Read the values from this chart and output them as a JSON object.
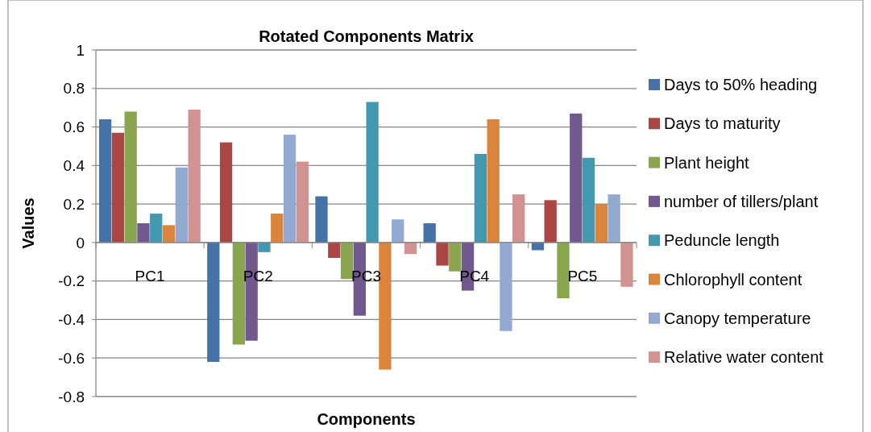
{
  "chart_data": {
    "type": "bar",
    "title": "Rotated Components Matrix",
    "xlabel": "Components",
    "ylabel": "Values",
    "categories": [
      "PC1",
      "PC2",
      "PC3",
      "PC4",
      "PC5"
    ],
    "series": [
      {
        "name": "Days to 50% heading",
        "color": "#4673a7",
        "values": [
          0.64,
          -0.62,
          0.24,
          0.1,
          -0.04
        ]
      },
      {
        "name": "Days to maturity",
        "color": "#aa4643",
        "values": [
          0.57,
          0.52,
          -0.08,
          -0.12,
          0.22
        ]
      },
      {
        "name": "Plant height",
        "color": "#89a54e",
        "values": [
          0.68,
          -0.53,
          -0.19,
          -0.15,
          -0.29
        ]
      },
      {
        "name": "number of tillers/plant",
        "color": "#71588f",
        "values": [
          0.1,
          -0.51,
          -0.38,
          -0.25,
          0.67
        ]
      },
      {
        "name": "Peduncle length",
        "color": "#4198af",
        "values": [
          0.15,
          -0.05,
          0.73,
          0.46,
          0.44
        ]
      },
      {
        "name": "Chlorophyll content",
        "color": "#db843d",
        "values": [
          0.09,
          0.15,
          -0.66,
          0.64,
          0.2
        ]
      },
      {
        "name": "Canopy temperature",
        "color": "#93a9cf",
        "values": [
          0.39,
          0.56,
          0.12,
          -0.46,
          0.25
        ]
      },
      {
        "name": "Relative water content",
        "color": "#d19392",
        "values": [
          0.69,
          0.42,
          -0.06,
          0.25,
          -0.23
        ]
      }
    ],
    "ylim": [
      -0.8,
      1
    ],
    "yticks": [
      -0.8,
      -0.6,
      -0.4,
      -0.2,
      0,
      0.2,
      0.4,
      0.6,
      0.8,
      1
    ],
    "grid": "y",
    "legend": "right"
  }
}
